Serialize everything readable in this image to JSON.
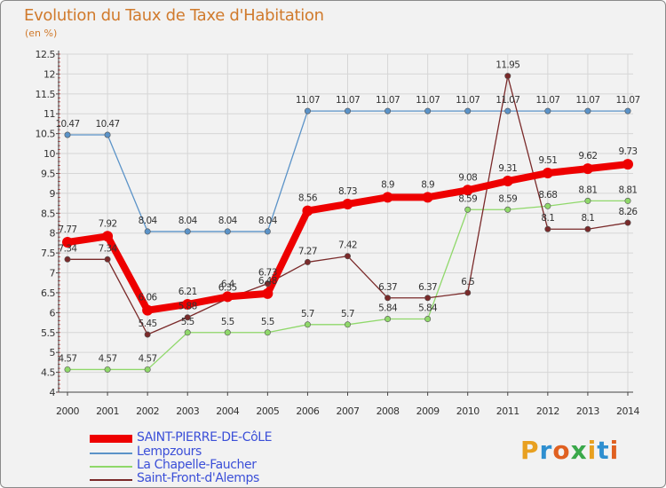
{
  "header": {
    "title": "Evolution du Taux de Taxe d'Habitation",
    "subtitle": "(en %)"
  },
  "logo": {
    "text": "Proxiti",
    "letters": [
      "P",
      "r",
      "o",
      "x",
      "i",
      "t",
      "i"
    ],
    "colors": [
      "#e8a020",
      "#2e8fd0",
      "#e06020",
      "#3aa84a",
      "#e8a020",
      "#2e8fd0",
      "#e06020"
    ]
  },
  "chart_data": {
    "type": "line",
    "title": "Evolution du Taux de Taxe d'Habitation",
    "ylabel": "(en %)",
    "xlabel": "",
    "ylim": [
      4,
      12.5
    ],
    "ytick_step": 0.5,
    "grid": true,
    "legend_position": "bottom-left",
    "categories": [
      "2000",
      "2001",
      "2002",
      "2003",
      "2004",
      "2005",
      "2006",
      "2007",
      "2008",
      "2009",
      "2010",
      "2011",
      "2012",
      "2013",
      "2014"
    ],
    "y_ticks": [
      "4",
      "4.5",
      "5",
      "5.5",
      "6",
      "6.5",
      "7",
      "7.5",
      "8",
      "8.5",
      "9",
      "9.5",
      "10",
      "10.5",
      "11",
      "11.5",
      "12",
      "12.5"
    ],
    "series": [
      {
        "name": "SAINT-PIERRE-DE-CôLE",
        "color": "#ee0000",
        "values": [
          7.77,
          7.92,
          6.06,
          6.21,
          6.4,
          6.48,
          8.56,
          8.73,
          8.9,
          8.9,
          9.08,
          9.31,
          9.51,
          9.62,
          9.73
        ],
        "labels": [
          "7.77",
          "7.92",
          "6.06",
          "6.21",
          "6.4",
          "6.48",
          "8.56",
          "8.73",
          "8.9",
          "8.9",
          "9.08",
          "9.31",
          "9.51",
          "9.62",
          "9.73"
        ]
      },
      {
        "name": "Lempzours",
        "color": "#5b93c8",
        "values": [
          10.47,
          10.47,
          8.04,
          8.04,
          8.04,
          8.04,
          11.07,
          11.07,
          11.07,
          11.07,
          11.07,
          11.07,
          11.07,
          11.07,
          11.07
        ],
        "labels": [
          "10.47",
          "10.47",
          "8.04",
          "8.04",
          "8.04",
          "8.04",
          "11.07",
          "11.07",
          "11.07",
          "11.07",
          "11.07",
          "11.07",
          "11.07",
          "11.07",
          "11.07"
        ]
      },
      {
        "name": "La Chapelle-Faucher",
        "color": "#8fd86a",
        "values": [
          4.57,
          4.57,
          4.57,
          5.5,
          5.5,
          5.5,
          5.7,
          5.7,
          5.84,
          5.84,
          8.59,
          8.59,
          8.68,
          8.81,
          8.81
        ],
        "labels": [
          "4.57",
          "4.57",
          "4.57",
          "5.5",
          "5.5",
          "5.5",
          "5.7",
          "5.7",
          "5.84",
          "5.84",
          "8.59",
          "8.59",
          "8.68",
          "8.81",
          "8.81"
        ]
      },
      {
        "name": "Saint-Front-d'Alemps",
        "color": "#7a2a2a",
        "values": [
          7.34,
          7.34,
          5.45,
          5.88,
          6.35,
          6.73,
          7.27,
          7.42,
          6.37,
          6.37,
          6.5,
          11.95,
          8.1,
          8.1,
          8.26
        ],
        "labels": [
          "7.34",
          "7.34",
          "5.45",
          "5.88",
          "6.35",
          "6.73",
          "7.27",
          "7.42",
          "6.37",
          "6.37",
          "6.5",
          "11.95",
          "8.1",
          "8.1",
          "8.26"
        ]
      }
    ]
  }
}
